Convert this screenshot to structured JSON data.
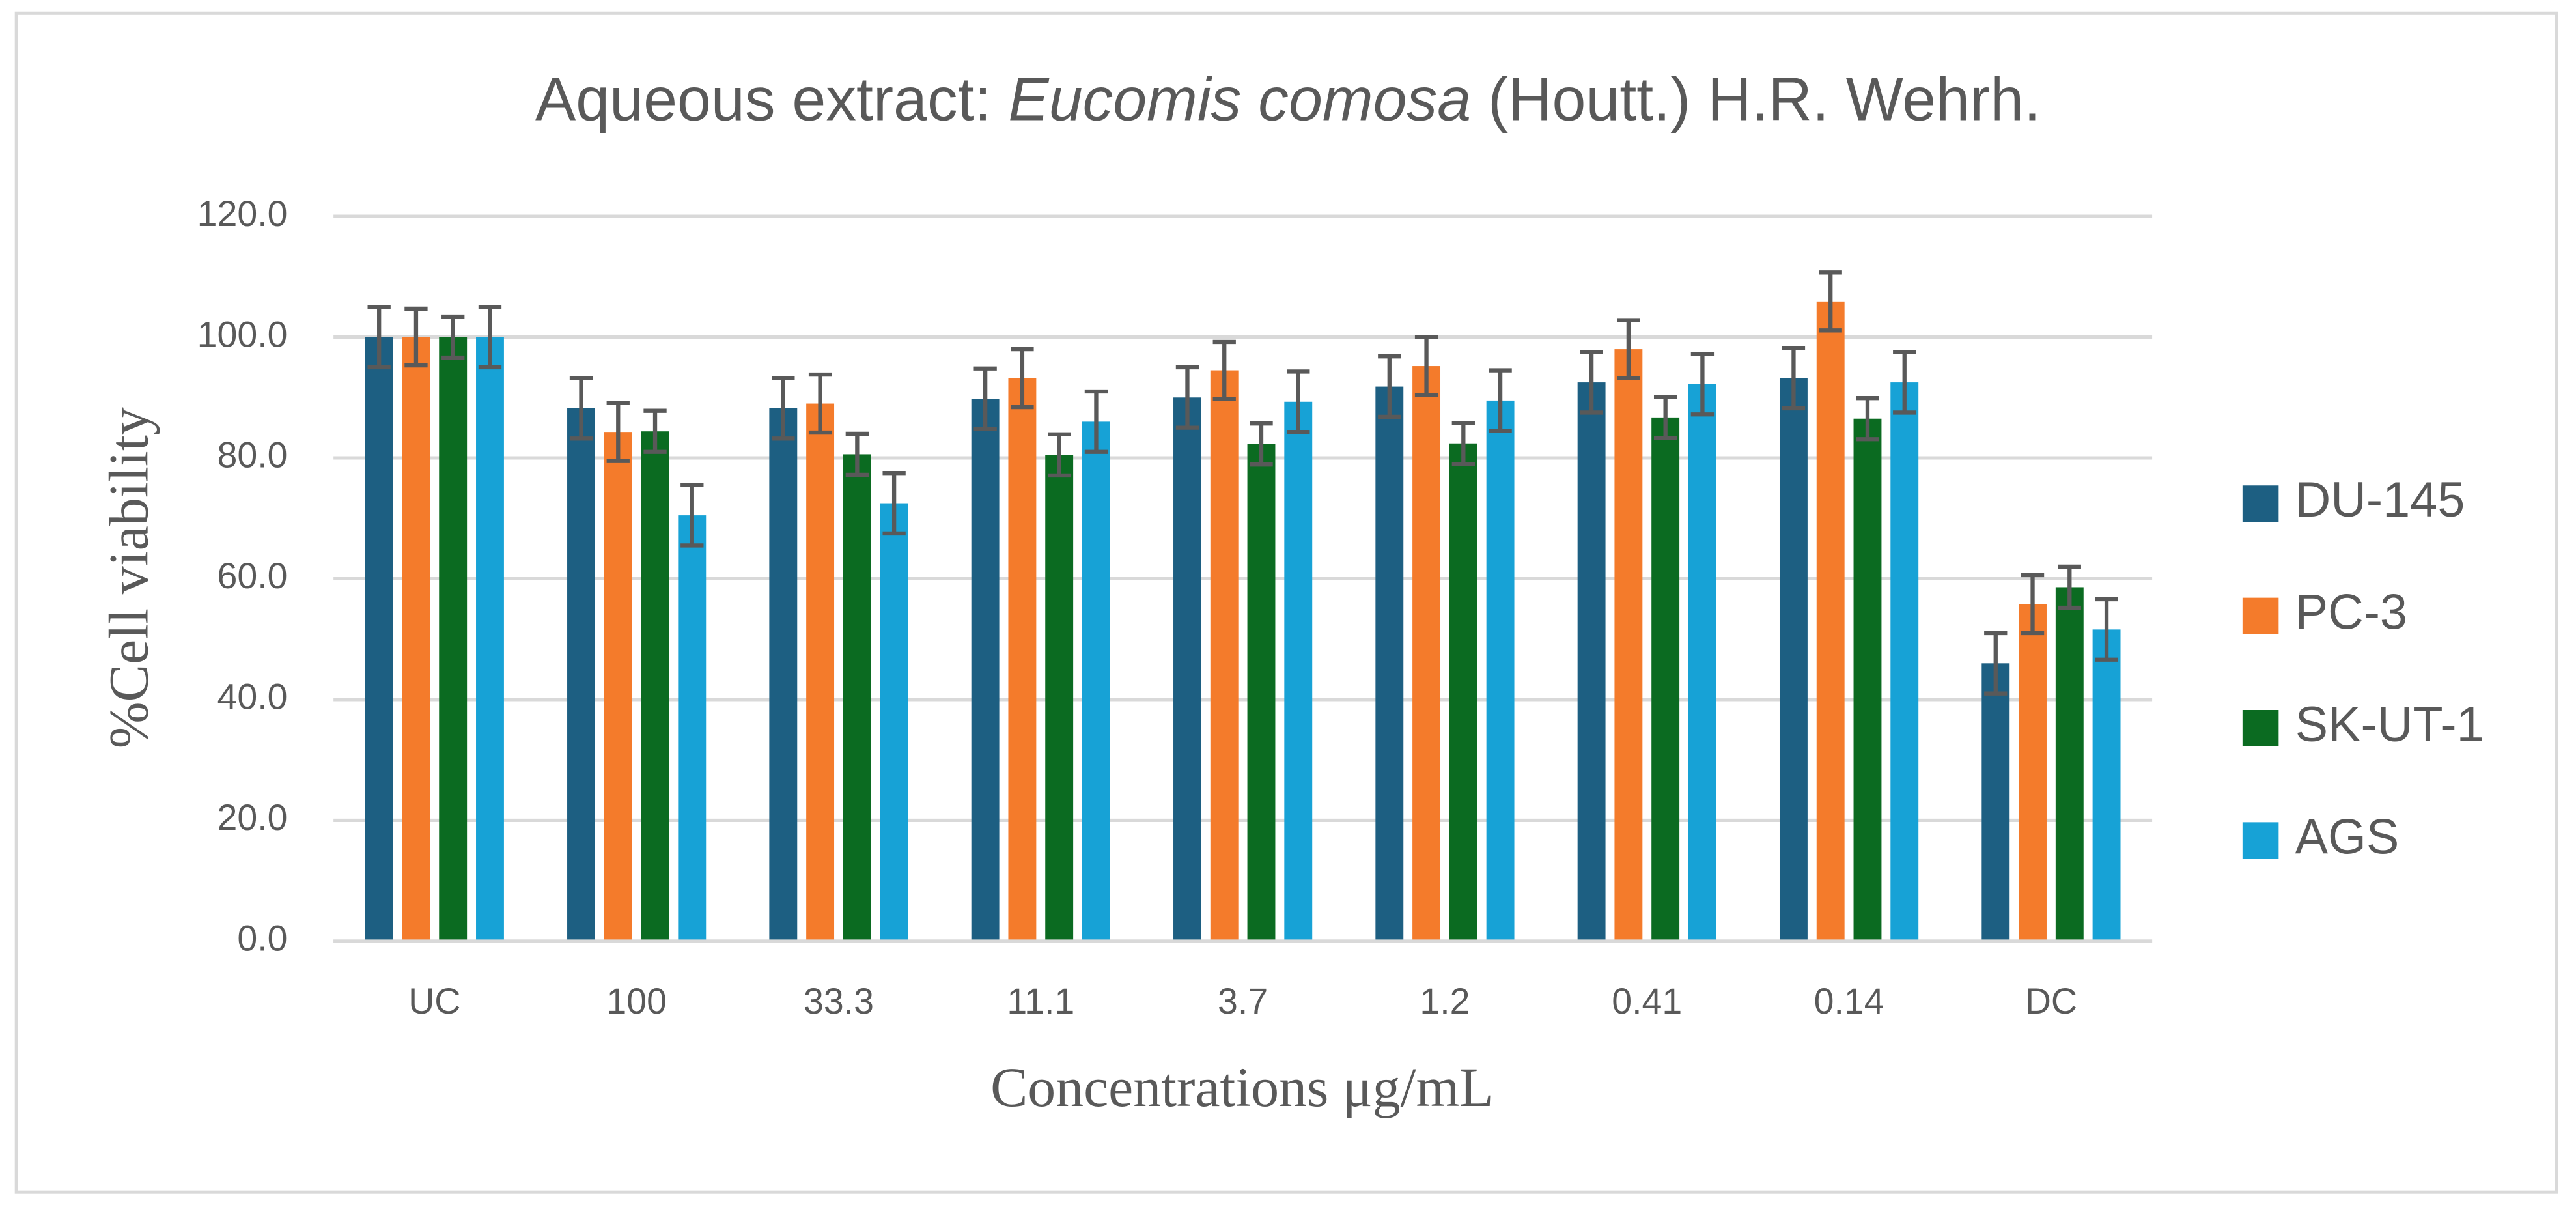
{
  "chart_data": {
    "type": "bar",
    "title": [
      "Aqueous extract:",
      "Eucomis comosa",
      "(Houtt.) H.R. Wehrh."
    ],
    "x_label": "Concentrations μg/mL",
    "y_label": "%Cell viability",
    "categories": [
      "UC",
      "100",
      "33.3",
      "11.1",
      "3.7",
      "1.2",
      "0.41",
      "0.14",
      "DC"
    ],
    "series": [
      {
        "name": "DU-145",
        "color": "#1d5f82",
        "values": [
          100,
          88.2,
          88.2,
          89.8,
          90.0,
          91.8,
          92.5,
          93.2,
          46.0
        ],
        "errors": [
          5,
          5,
          5,
          5,
          5,
          5,
          5,
          5,
          5
        ]
      },
      {
        "name": "PC-3",
        "color": "#f47b2b",
        "values": [
          100,
          84.3,
          89.0,
          93.2,
          94.5,
          95.2,
          98.0,
          105.9,
          55.8
        ],
        "errors": [
          4.7,
          4.8,
          4.8,
          4.8,
          4.7,
          4.8,
          4.8,
          4.8,
          4.8
        ]
      },
      {
        "name": "SK-UT-1",
        "color": "#0b6b21",
        "values": [
          100,
          84.4,
          80.6,
          80.5,
          82.3,
          82.4,
          86.7,
          86.5,
          58.6
        ],
        "errors": [
          3.4,
          3.4,
          3.4,
          3.4,
          3.4,
          3.4,
          3.4,
          3.4,
          3.4
        ]
      },
      {
        "name": "AGS",
        "color": "#17a2d6",
        "values": [
          100,
          70.5,
          72.5,
          86.0,
          89.3,
          89.5,
          92.2,
          92.5,
          51.6
        ],
        "errors": [
          5,
          5,
          5,
          5,
          5,
          5,
          5,
          5,
          5
        ]
      }
    ],
    "ylim": [
      0,
      120
    ],
    "yticks": [
      {
        "value": 0,
        "label": "0.0"
      },
      {
        "value": 20,
        "label": "20.0"
      },
      {
        "value": 40,
        "label": "40.0"
      },
      {
        "value": 60,
        "label": "60.0"
      },
      {
        "value": 80,
        "label": "80.0"
      },
      {
        "value": 100,
        "label": "100.0"
      },
      {
        "value": 120,
        "label": "120.0"
      }
    ],
    "grid": true,
    "legend": "right"
  }
}
